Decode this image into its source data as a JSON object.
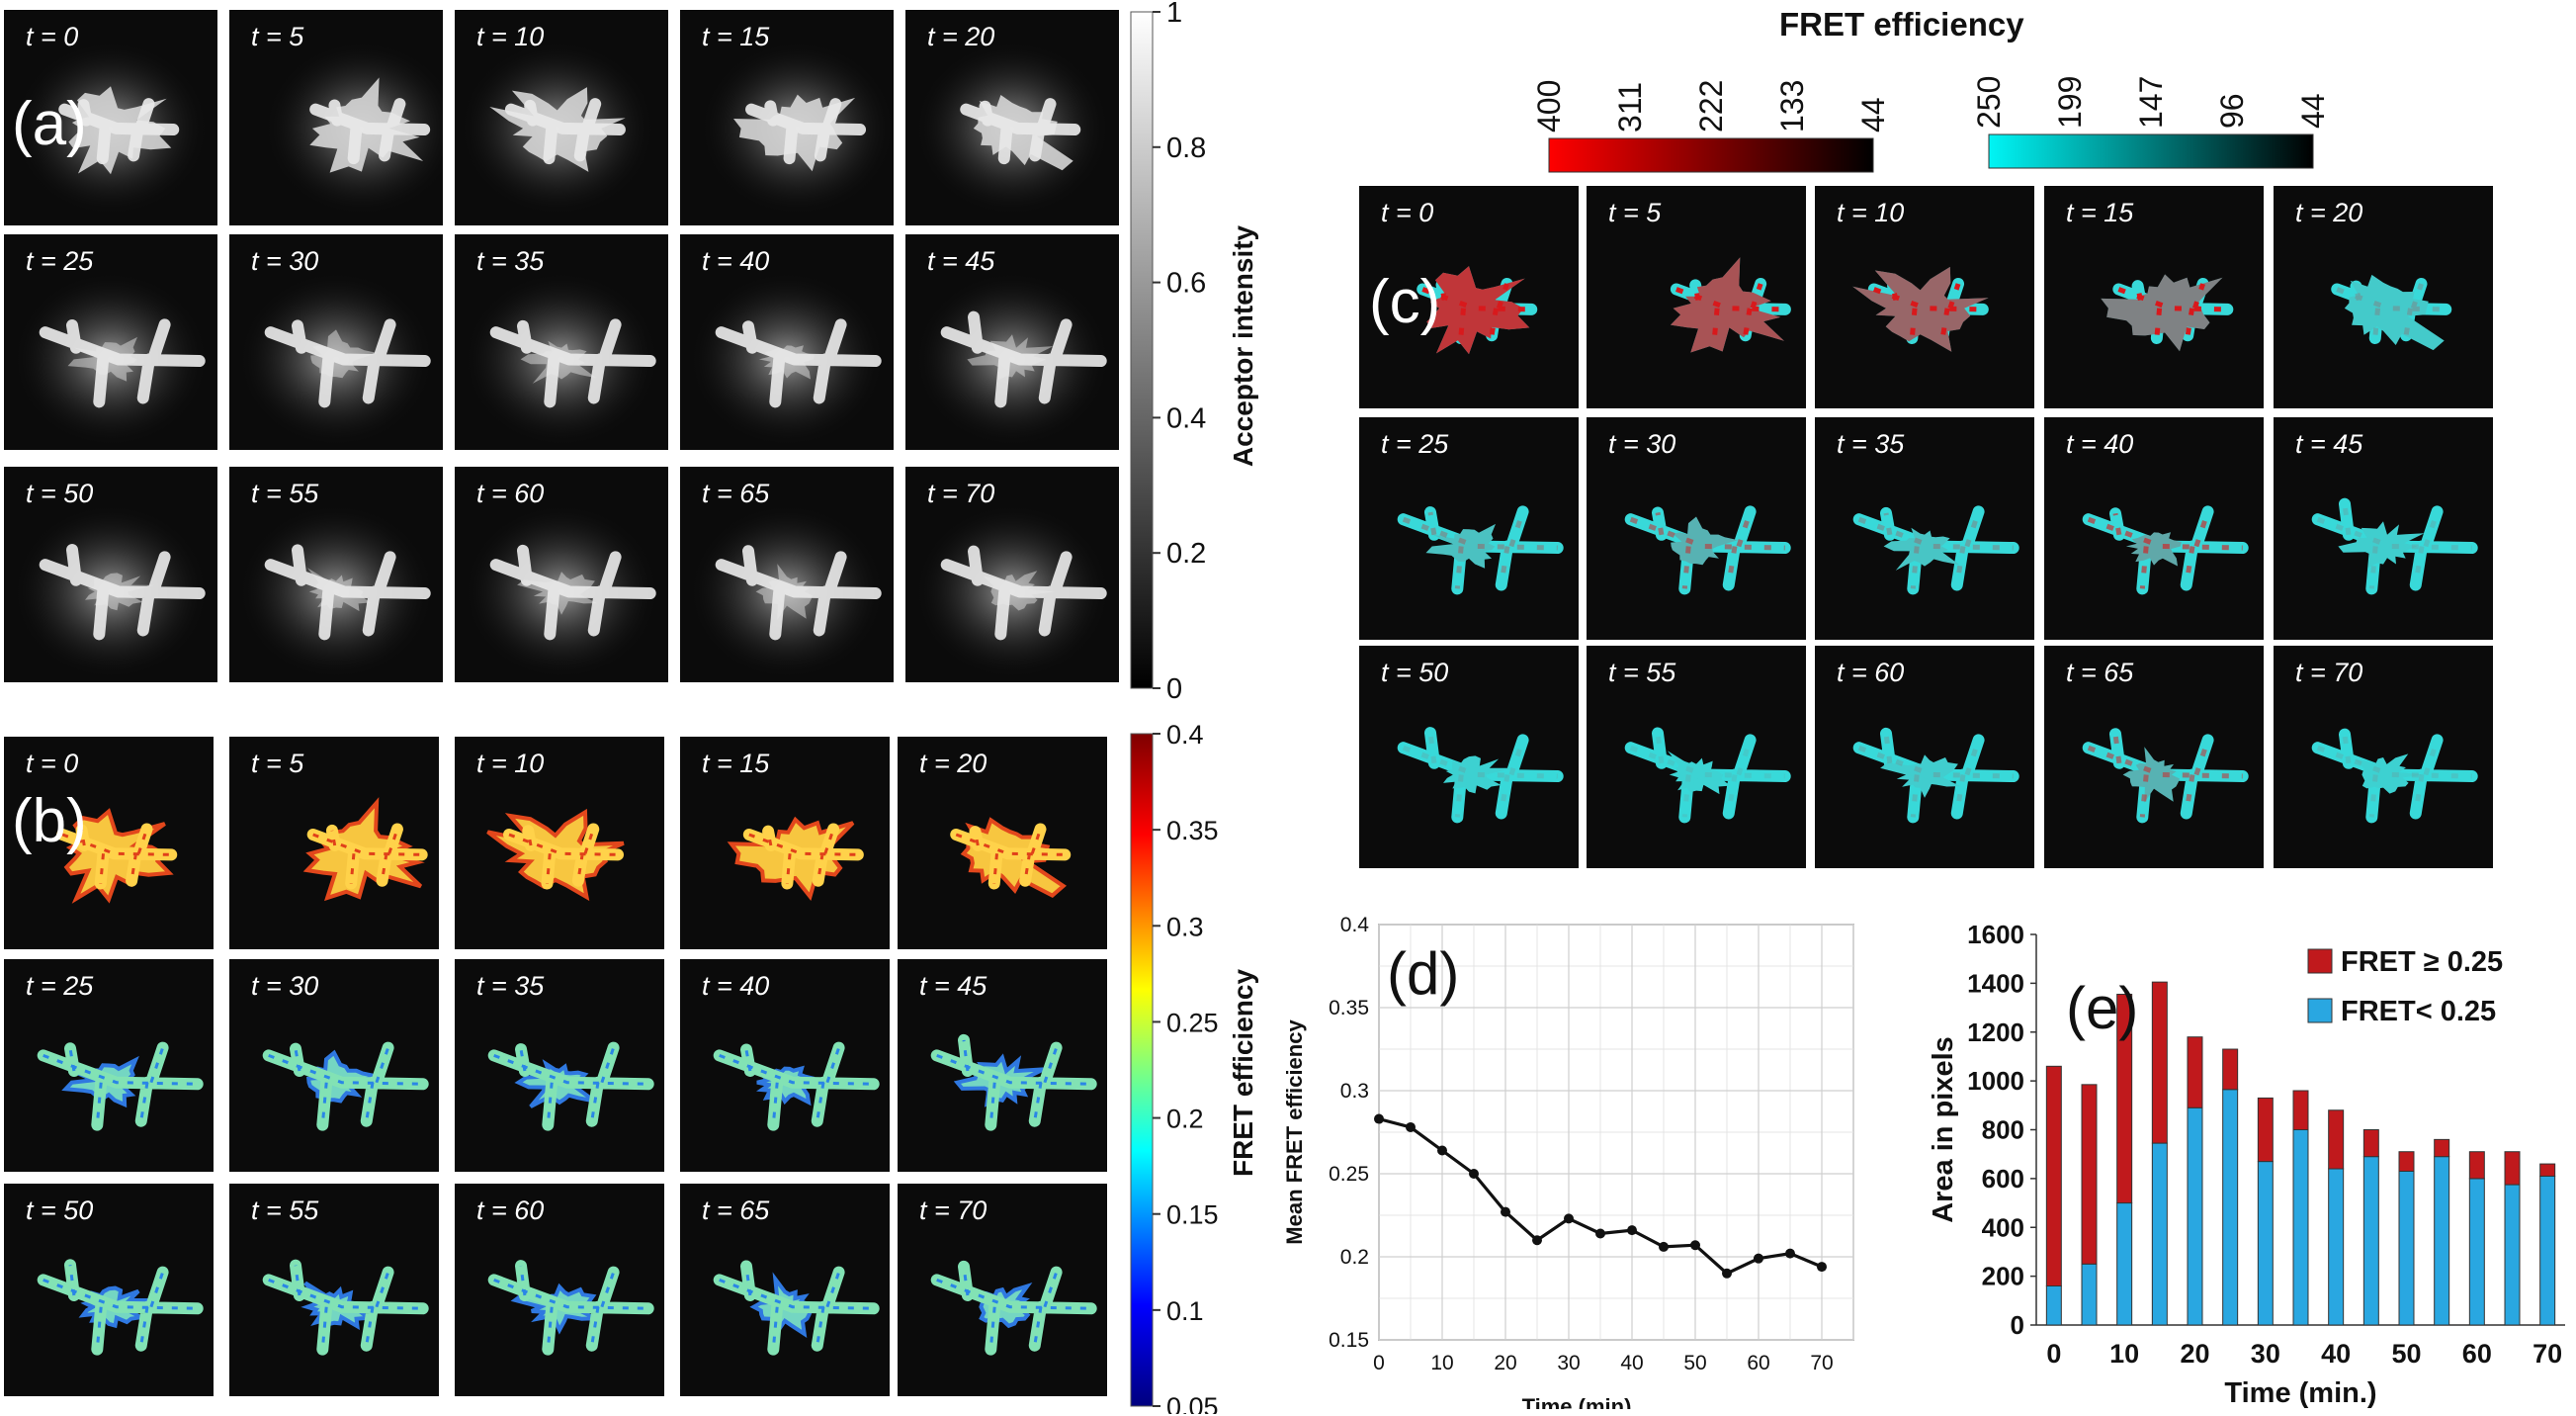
{
  "panel_a": {
    "label": "(a)",
    "frames": [
      "t = 0",
      "t = 5",
      "t = 10",
      "t = 15",
      "t = 20",
      "t = 25",
      "t = 30",
      "t = 35",
      "t = 40",
      "t = 45",
      "t = 50",
      "t = 55",
      "t = 60",
      "t = 65",
      "t = 70"
    ],
    "colorbar": {
      "label": "Acceptor intensity",
      "ticks": [
        "1",
        "0.8",
        "0.6",
        "0.4",
        "0.2",
        "0"
      ]
    }
  },
  "panel_b": {
    "label": "(b)",
    "frames": [
      "t = 0",
      "t = 5",
      "t = 10",
      "t = 15",
      "t = 20",
      "t = 25",
      "t = 30",
      "t = 35",
      "t = 40",
      "t = 45",
      "t = 50",
      "t = 55",
      "t = 60",
      "t = 65",
      "t = 70"
    ],
    "colorbar": {
      "label": "FRET efficiency",
      "ticks": [
        "0.4",
        "0.35",
        "0.3",
        "0.25",
        "0.2",
        "0.15",
        "0.1",
        "0.05"
      ]
    }
  },
  "panel_c": {
    "label": "(c)",
    "title": "FRET efficiency",
    "red_scale_ticks": [
      "400",
      "311",
      "222",
      "133",
      "44"
    ],
    "cyan_scale_ticks": [
      "250",
      "199",
      "147",
      "96",
      "44"
    ],
    "frames": [
      "t = 0",
      "t = 5",
      "t = 10",
      "t = 15",
      "t = 20",
      "t = 25",
      "t = 30",
      "t = 35",
      "t = 40",
      "t = 45",
      "t = 50",
      "t = 55",
      "t = 60",
      "t = 65",
      "t = 70"
    ],
    "red_fraction": [
      0.85,
      0.7,
      0.6,
      0.45,
      0.08,
      0.12,
      0.2,
      0.1,
      0.25,
      0.05,
      0.04,
      0.03,
      0.06,
      0.2,
      0.04
    ]
  },
  "chart_data": [
    {
      "type": "line",
      "label": "(d)",
      "xlabel": "Time (min)",
      "ylabel": "Mean FRET efficiency",
      "xlim": [
        0,
        75
      ],
      "ylim": [
        0.15,
        0.4
      ],
      "x_ticks": [
        "0",
        "10",
        "20",
        "30",
        "40",
        "50",
        "60",
        "70"
      ],
      "y_ticks": [
        "0.15",
        "0.2",
        "0.25",
        "0.3",
        "0.35",
        "0.4"
      ],
      "grid": true,
      "x": [
        0,
        5,
        10,
        15,
        20,
        25,
        30,
        35,
        40,
        45,
        50,
        55,
        60,
        65,
        70
      ],
      "y": [
        0.283,
        0.278,
        0.264,
        0.25,
        0.227,
        0.21,
        0.223,
        0.214,
        0.216,
        0.206,
        0.207,
        0.19,
        0.199,
        0.202,
        0.194
      ]
    },
    {
      "type": "bar",
      "label": "(e)",
      "xlabel": "Time (min.)",
      "ylabel": "Area in pixels",
      "ylim": [
        0,
        1600
      ],
      "y_ticks": [
        "0",
        "200",
        "400",
        "600",
        "800",
        "1000",
        "1200",
        "1400",
        "1600"
      ],
      "x_ticks": [
        "0",
        "10",
        "20",
        "30",
        "40",
        "50",
        "60",
        "70"
      ],
      "categories": [
        "0",
        "5",
        "10",
        "15",
        "20",
        "25",
        "30",
        "35",
        "40",
        "45",
        "50",
        "55",
        "60",
        "65",
        "70"
      ],
      "stacked": true,
      "legend_position": "top-right",
      "series": [
        {
          "name": "FRET< 0.25",
          "color": "#29a7e1",
          "values": [
            160,
            250,
            500,
            745,
            890,
            965,
            670,
            800,
            640,
            690,
            630,
            690,
            600,
            575,
            610
          ]
        },
        {
          "name": "FRET ≥ 0.25",
          "color": "#c0191c",
          "values": [
            900,
            735,
            855,
            660,
            290,
            165,
            260,
            160,
            240,
            110,
            80,
            70,
            110,
            135,
            50
          ]
        }
      ]
    }
  ]
}
